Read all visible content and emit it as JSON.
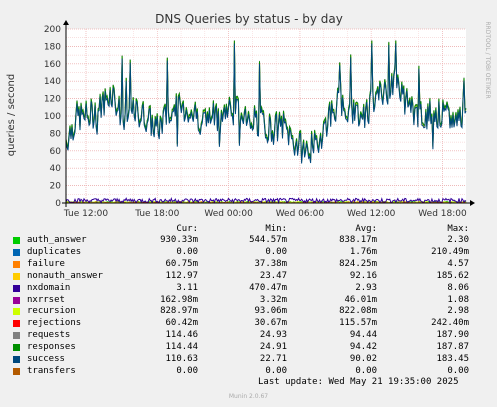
{
  "chart_data": {
    "type": "line",
    "title": "DNS Queries by status - by day",
    "ylabel": "queries / second",
    "side_label": "RRDTOOL / TOBI OETIKER",
    "ylim": [
      0,
      200
    ],
    "yticks": [
      0,
      20,
      40,
      60,
      80,
      100,
      120,
      140,
      160,
      180,
      200
    ],
    "xticks": [
      "Tue 12:00",
      "Tue 18:00",
      "Wed 00:00",
      "Wed 06:00",
      "Wed 12:00",
      "Wed 18:00"
    ],
    "grid": true,
    "series_profile": [
      {
        "x": 0,
        "y": 72
      },
      {
        "x": 1,
        "y": 100
      },
      {
        "x": 2,
        "y": 100
      },
      {
        "x": 3,
        "y": 110
      },
      {
        "x": 4,
        "y": 130
      },
      {
        "x": 5,
        "y": 95
      },
      {
        "x": 6,
        "y": 105
      },
      {
        "x": 7,
        "y": 100
      },
      {
        "x": 8,
        "y": 85
      },
      {
        "x": 9,
        "y": 105
      },
      {
        "x": 10,
        "y": 110
      },
      {
        "x": 11,
        "y": 105
      },
      {
        "x": 12,
        "y": 95
      },
      {
        "x": 13,
        "y": 100
      },
      {
        "x": 14,
        "y": 105
      },
      {
        "x": 15,
        "y": 110
      },
      {
        "x": 16,
        "y": 100
      },
      {
        "x": 17,
        "y": 95
      },
      {
        "x": 18,
        "y": 85
      },
      {
        "x": 19,
        "y": 90
      },
      {
        "x": 20,
        "y": 70
      },
      {
        "x": 21,
        "y": 60
      },
      {
        "x": 22,
        "y": 70
      },
      {
        "x": 23,
        "y": 100
      },
      {
        "x": 24,
        "y": 120
      },
      {
        "x": 25,
        "y": 110
      },
      {
        "x": 26,
        "y": 100
      },
      {
        "x": 27,
        "y": 120
      },
      {
        "x": 28,
        "y": 130
      },
      {
        "x": 29,
        "y": 140
      },
      {
        "x": 30,
        "y": 110
      },
      {
        "x": 31,
        "y": 100
      },
      {
        "x": 32,
        "y": 105
      },
      {
        "x": 33,
        "y": 100
      },
      {
        "x": 34,
        "y": 95
      },
      {
        "x": 35,
        "y": 110
      }
    ],
    "series": [
      {
        "name": "auth_answer",
        "color": "#00cc00"
      },
      {
        "name": "duplicates",
        "color": "#0066b3"
      },
      {
        "name": "failure",
        "color": "#ff8000"
      },
      {
        "name": "nonauth_answer",
        "color": "#ffcc00"
      },
      {
        "name": "nxdomain",
        "color": "#330099"
      },
      {
        "name": "nxrrset",
        "color": "#990099"
      },
      {
        "name": "recursion",
        "color": "#ccff00"
      },
      {
        "name": "rejections",
        "color": "#ff0000"
      },
      {
        "name": "requests",
        "color": "#808080"
      },
      {
        "name": "responses",
        "color": "#008f00"
      },
      {
        "name": "success",
        "color": "#00487d"
      },
      {
        "name": "transfers",
        "color": "#b35a00"
      }
    ]
  },
  "legend": {
    "headers": {
      "cur": "Cur:",
      "min": "Min:",
      "avg": "Avg:",
      "max": "Max:"
    },
    "rows": [
      {
        "name": "auth_answer",
        "color": "#00cc00",
        "cur": "930.33m",
        "min": "544.57m",
        "avg": "838.17m",
        "max": "2.30"
      },
      {
        "name": "duplicates",
        "color": "#0066b3",
        "cur": "0.00",
        "min": "0.00",
        "avg": "1.76m",
        "max": "210.49m"
      },
      {
        "name": "failure",
        "color": "#ff8000",
        "cur": "60.75m",
        "min": "37.38m",
        "avg": "824.25m",
        "max": "4.57"
      },
      {
        "name": "nonauth_answer",
        "color": "#ffcc00",
        "cur": "112.97",
        "min": "23.47",
        "avg": "92.16",
        "max": "185.62"
      },
      {
        "name": "nxdomain",
        "color": "#330099",
        "cur": "3.11",
        "min": "470.47m",
        "avg": "2.93",
        "max": "8.06"
      },
      {
        "name": "nxrrset",
        "color": "#990099",
        "cur": "162.98m",
        "min": "3.32m",
        "avg": "46.01m",
        "max": "1.08"
      },
      {
        "name": "recursion",
        "color": "#ccff00",
        "cur": "828.97m",
        "min": "93.06m",
        "avg": "822.08m",
        "max": "2.98"
      },
      {
        "name": "rejections",
        "color": "#ff0000",
        "cur": "60.42m",
        "min": "30.67m",
        "avg": "115.57m",
        "max": "242.40m"
      },
      {
        "name": "requests",
        "color": "#808080",
        "cur": "114.46",
        "min": "24.93",
        "avg": "94.44",
        "max": "187.90"
      },
      {
        "name": "responses",
        "color": "#008f00",
        "cur": "114.44",
        "min": "24.91",
        "avg": "94.42",
        "max": "187.87"
      },
      {
        "name": "success",
        "color": "#00487d",
        "cur": "110.63",
        "min": "22.71",
        "avg": "90.02",
        "max": "183.45"
      },
      {
        "name": "transfers",
        "color": "#b35a00",
        "cur": "0.00",
        "min": "0.00",
        "avg": "0.00",
        "max": "0.00"
      }
    ]
  },
  "last_update": "Last update: Wed May 21 19:35:00 2025",
  "footer": "Munin 2.0.67"
}
